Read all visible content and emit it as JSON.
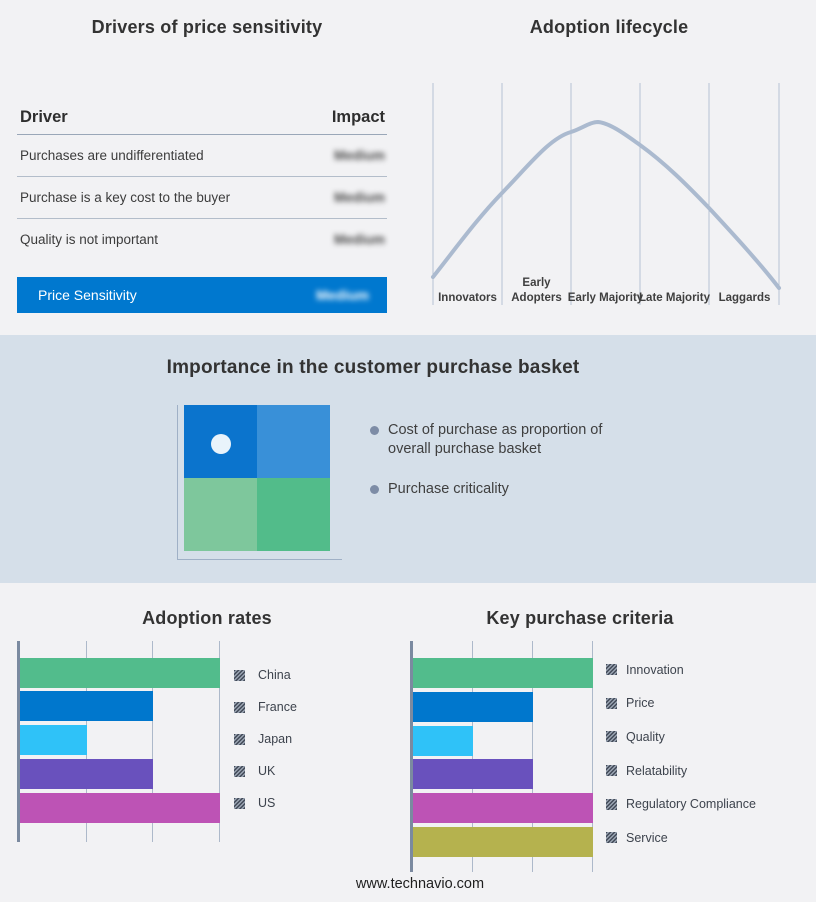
{
  "chart_data": [
    {
      "type": "table",
      "title": "Drivers of price sensitivity",
      "columns": [
        "Driver",
        "Impact"
      ],
      "rows": [
        [
          "Purchases are undifferentiated",
          "Medium"
        ],
        [
          "Purchase is a key cost to the buyer",
          "Medium"
        ],
        [
          "Quality is not important",
          "Medium"
        ],
        [
          "Price Sensitivity",
          "Medium"
        ]
      ],
      "highlight_row_index": 3,
      "highlight_color": "#0078cf",
      "note": "Impact values appear blurred in the source image"
    },
    {
      "type": "line",
      "title": "Adoption lifecycle",
      "categories": [
        "Innovators",
        "Early Adopters",
        "Early Majority",
        "Late Majority",
        "Laggards"
      ],
      "description": "Bell-shaped adoption curve rising from Innovators, peaking over Early Majority, falling through Laggards",
      "curve_color": "#abbacf",
      "grid": true,
      "axes_labeled": false
    },
    {
      "type": "bar",
      "title": "Adoption rates",
      "orientation": "horizontal",
      "categories": [
        "China",
        "France",
        "Japan",
        "UK",
        "US"
      ],
      "values": [
        3,
        2,
        1,
        2,
        3
      ],
      "xlim": [
        0,
        3
      ],
      "value_note": "axis unlabeled; values in gridline units",
      "colors": [
        "#52bc8c",
        "#0077cd",
        "#2fc2f8",
        "#6951bd",
        "#bd53b5"
      ],
      "grid": true,
      "legend_position": "right"
    },
    {
      "type": "bar",
      "title": "Key purchase criteria",
      "orientation": "horizontal",
      "categories": [
        "Innovation",
        "Price",
        "Quality",
        "Relatability",
        "Regulatory Compliance",
        "Service"
      ],
      "values": [
        3,
        2,
        1,
        2,
        3,
        3
      ],
      "xlim": [
        0,
        3
      ],
      "value_note": "axis unlabeled; values in gridline units",
      "colors": [
        "#52bc8c",
        "#0077cd",
        "#2fc2f8",
        "#6951bd",
        "#bd53b5",
        "#b5b24e"
      ],
      "grid": true,
      "legend_position": "right"
    }
  ],
  "middle": {
    "title": "Importance in the customer purchase basket",
    "background": "#d5dfe9",
    "bullets": [
      "Cost of purchase as proportion of overall purchase basket",
      "Purchase criticality"
    ],
    "quadrant_colors": [
      "#0b74cd",
      "#3990d8",
      "#7ec79c",
      "#52bc8a"
    ]
  },
  "footer": {
    "url": "www.technavio.com"
  }
}
